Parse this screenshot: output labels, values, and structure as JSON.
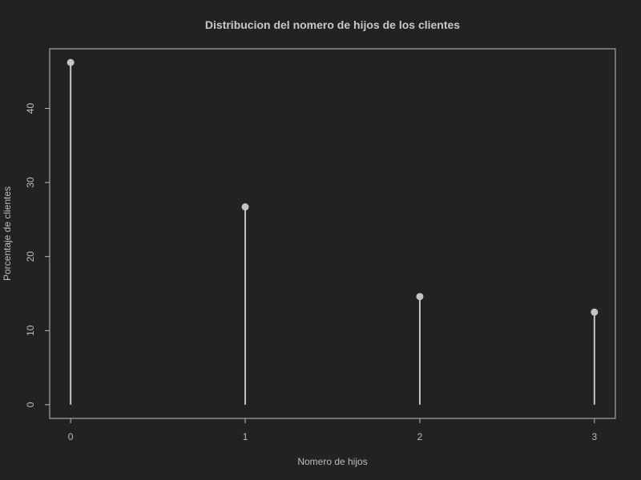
{
  "chart_data": {
    "type": "lollipop",
    "title": "Distribucion del nomero de hijos de los clientes",
    "xlabel": "Nomero de hijos",
    "ylabel": "Porcentaje de clientes",
    "x": [
      0,
      1,
      2,
      3
    ],
    "y": [
      46.2,
      26.7,
      14.6,
      12.5
    ],
    "x_ticks": [
      "0",
      "1",
      "2",
      "3"
    ],
    "y_ticks": [
      "0",
      "10",
      "20",
      "30",
      "40"
    ],
    "xlim": [
      -0.12,
      3.12
    ],
    "ylim": [
      -1.85,
      48.05
    ],
    "grid": false,
    "colors": {
      "background": "#222222",
      "mark": "#c4c4c4",
      "axis": "#bdbdbd"
    }
  }
}
